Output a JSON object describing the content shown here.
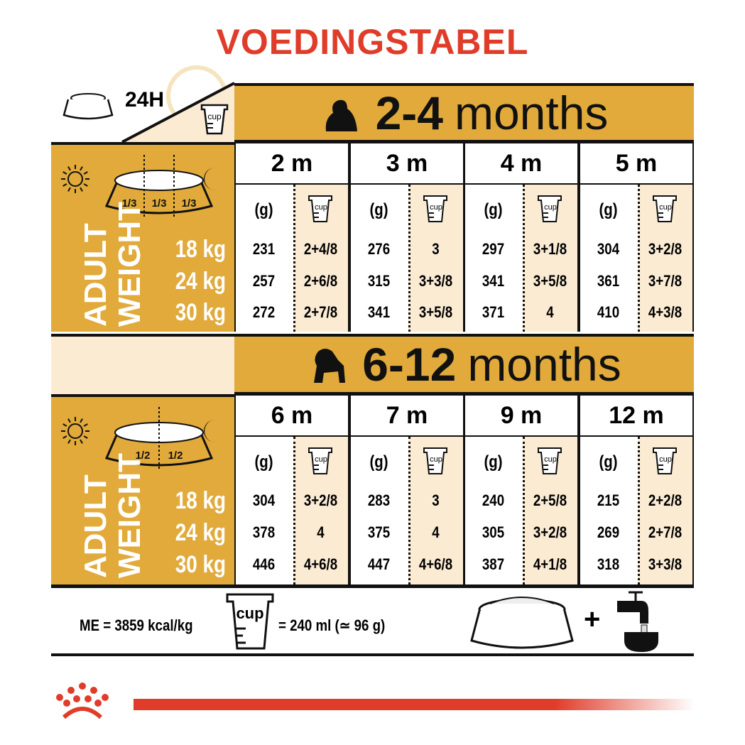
{
  "title": "VOEDINGSTABEL",
  "legend": {
    "duration": "24H",
    "cup_label": "cup"
  },
  "colors": {
    "gold": "#E1AA3A",
    "cream": "#FBEBD3",
    "brand_red": "#E03C2A"
  },
  "weight_label": {
    "line1": "ADULT",
    "line2": "WEIGHT"
  },
  "weights": [
    "18 kg",
    "24 kg",
    "30 kg"
  ],
  "unit_g": "(g)",
  "sections": [
    {
      "age_bold": "2-4",
      "age_text": "months",
      "fractions": [
        "1/3",
        "1/3",
        "1/3"
      ],
      "months": [
        {
          "label": "2 m",
          "grams": [
            "231",
            "257",
            "272"
          ],
          "cups": [
            "2+4/8",
            "2+6/8",
            "2+7/8"
          ]
        },
        {
          "label": "3 m",
          "grams": [
            "276",
            "315",
            "341"
          ],
          "cups": [
            "3",
            "3+3/8",
            "3+5/8"
          ]
        },
        {
          "label": "4 m",
          "grams": [
            "297",
            "341",
            "371"
          ],
          "cups": [
            "3+1/8",
            "3+5/8",
            "4"
          ]
        },
        {
          "label": "5 m",
          "grams": [
            "304",
            "361",
            "410"
          ],
          "cups": [
            "3+2/8",
            "3+7/8",
            "4+3/8"
          ]
        }
      ]
    },
    {
      "age_bold": "6-12",
      "age_text": "months",
      "fractions": [
        "1/2",
        "1/2"
      ],
      "months": [
        {
          "label": "6 m",
          "grams": [
            "304",
            "378",
            "446"
          ],
          "cups": [
            "3+2/8",
            "4",
            "4+6/8"
          ]
        },
        {
          "label": "7 m",
          "grams": [
            "283",
            "375",
            "447"
          ],
          "cups": [
            "3",
            "4",
            "4+6/8"
          ]
        },
        {
          "label": "9 m",
          "grams": [
            "240",
            "305",
            "387"
          ],
          "cups": [
            "2+5/8",
            "3+2/8",
            "4+1/8"
          ]
        },
        {
          "label": "12 m",
          "grams": [
            "215",
            "269",
            "318"
          ],
          "cups": [
            "2+2/8",
            "2+7/8",
            "3+3/8"
          ]
        }
      ]
    }
  ],
  "footer": {
    "energy": "ME = 3859 kcal/kg",
    "cup_equiv": "= 240 ml (≃ 96 g)",
    "plus": "+"
  }
}
